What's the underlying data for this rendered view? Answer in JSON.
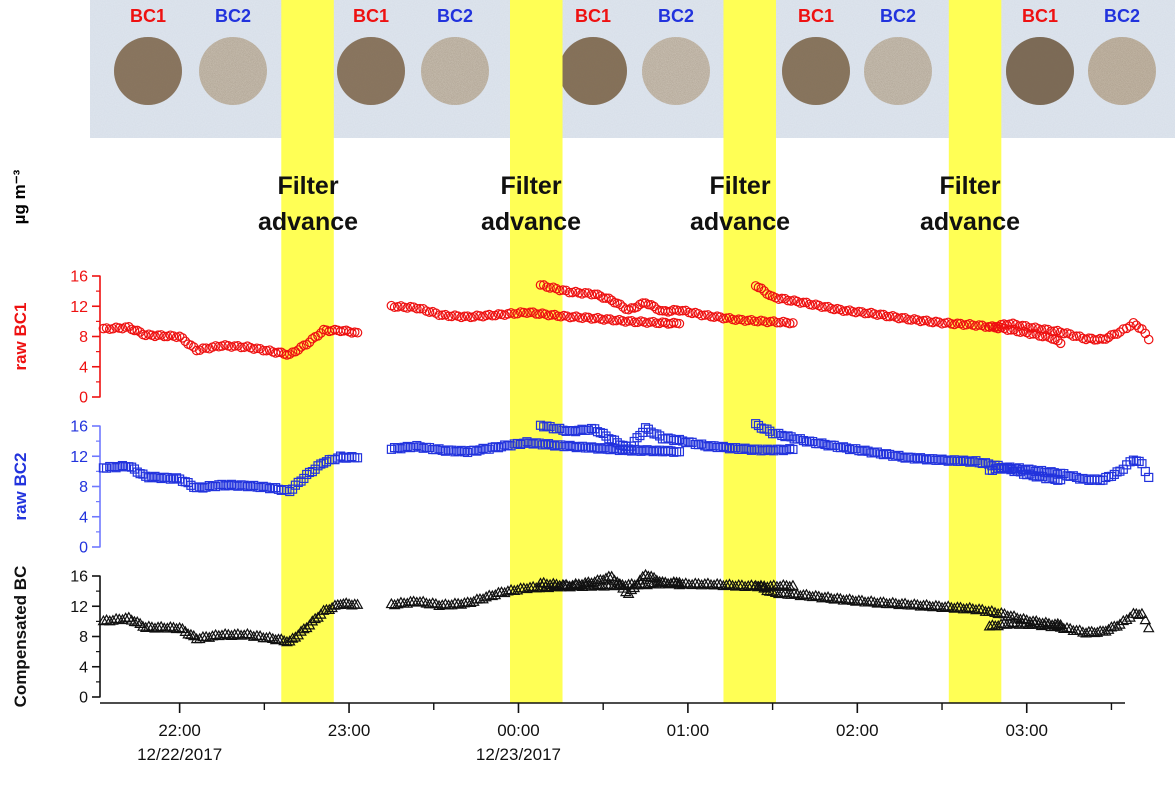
{
  "colors": {
    "bc1": "#ee1111",
    "bc2": "#2233dd",
    "bc2_axis": "#6f78ff",
    "compensated": "#111111",
    "band": "#ffff55",
    "filter_tape": "#dfe6ef"
  },
  "unit_label": "µg m⁻³",
  "filter_spots": [
    {
      "label": "BC1",
      "color": "#ee1111",
      "spot_shade": "#8c7760"
    },
    {
      "label": "BC2",
      "color": "#2233dd",
      "spot_shade": "#cfc6b8"
    },
    {
      "label": "BC1",
      "color": "#ee1111",
      "spot_shade": "#8c7760"
    },
    {
      "label": "BC2",
      "color": "#2233dd",
      "spot_shade": "#cfc6b8"
    },
    {
      "label": "BC1",
      "color": "#ee1111",
      "spot_shade": "#877259"
    },
    {
      "label": "BC2",
      "color": "#2233dd",
      "spot_shade": "#d2c9bc"
    },
    {
      "label": "BC1",
      "color": "#ee1111",
      "spot_shade": "#8a765e"
    },
    {
      "label": "BC2",
      "color": "#2233dd",
      "spot_shade": "#d0c8bb"
    },
    {
      "label": "BC1",
      "color": "#ee1111",
      "spot_shade": "#7c6a55"
    },
    {
      "label": "BC2",
      "color": "#2233dd",
      "spot_shade": "#cbbfae"
    }
  ],
  "chart_data": {
    "type": "scatter",
    "x_axis": {
      "unit": "hours after 00:00 12/23/2017",
      "range": [
        -2.47,
        3.58
      ],
      "major_ticks": [
        -2,
        -1,
        0,
        1,
        2,
        3
      ],
      "minor_ticks": [
        -1.5,
        -0.5,
        0.5,
        1.5,
        2.5,
        3.5
      ],
      "tick_labels": [
        {
          "time": "22:00",
          "date": "12/22/2017"
        },
        {
          "time": "23:00",
          "date": ""
        },
        {
          "time": "00:00",
          "date": "12/23/2017"
        },
        {
          "time": "01:00",
          "date": ""
        },
        {
          "time": "02:00",
          "date": ""
        },
        {
          "time": "03:00",
          "date": ""
        }
      ]
    },
    "filter_advance_bands": [
      {
        "start": -1.4,
        "end": -1.09,
        "line1": "Filter",
        "line2": "advance"
      },
      {
        "start": -0.05,
        "end": 0.26,
        "line1": "Filter",
        "line2": "advance"
      },
      {
        "start": 1.21,
        "end": 1.52,
        "line1": "Filter",
        "line2": "advance"
      },
      {
        "start": 2.54,
        "end": 2.85,
        "line1": "Filter",
        "line2": "advance"
      }
    ],
    "panels": [
      {
        "name": "raw BC1",
        "label_prefix": "raw ",
        "label_main": "BC1",
        "marker": "circle",
        "ylim": [
          0,
          16
        ],
        "yticks": [
          "0",
          "4",
          "8",
          "12",
          "16"
        ],
        "segments": [
          [
            [
              -2.45,
              9.0
            ],
            [
              -2.3,
              9.2
            ],
            [
              -2.2,
              8.2
            ],
            [
              -2.0,
              8.0
            ],
            [
              -1.9,
              6.2
            ],
            [
              -1.75,
              6.8
            ],
            [
              -1.6,
              6.6
            ],
            [
              -1.45,
              6.0
            ],
            [
              -1.35,
              5.6
            ],
            [
              -1.25,
              7.0
            ],
            [
              -1.15,
              8.8
            ],
            [
              -1.05,
              8.8
            ],
            [
              -0.95,
              8.5
            ]
          ],
          [
            [
              -0.75,
              12.0
            ],
            [
              -0.6,
              11.8
            ],
            [
              -0.45,
              10.8
            ],
            [
              -0.3,
              10.6
            ],
            [
              -0.1,
              10.9
            ],
            [
              0.05,
              11.2
            ],
            [
              0.25,
              10.7
            ],
            [
              0.45,
              10.4
            ],
            [
              0.65,
              10.0
            ],
            [
              0.85,
              9.8
            ],
            [
              0.95,
              9.7
            ]
          ],
          [
            [
              0.13,
              14.8
            ],
            [
              0.3,
              13.9
            ],
            [
              0.45,
              13.6
            ],
            [
              0.55,
              12.8
            ],
            [
              0.65,
              11.5
            ],
            [
              0.75,
              12.5
            ],
            [
              0.85,
              11.3
            ],
            [
              0.95,
              11.5
            ],
            [
              1.1,
              10.8
            ],
            [
              1.3,
              10.2
            ],
            [
              1.45,
              10.0
            ],
            [
              1.62,
              9.8
            ]
          ],
          [
            [
              1.4,
              14.8
            ],
            [
              1.5,
              13.2
            ],
            [
              1.7,
              12.4
            ],
            [
              1.9,
              11.5
            ],
            [
              2.1,
              11.0
            ],
            [
              2.3,
              10.3
            ],
            [
              2.5,
              9.8
            ],
            [
              2.7,
              9.5
            ],
            [
              2.85,
              9.1
            ],
            [
              3.0,
              8.5
            ],
            [
              3.15,
              7.8
            ],
            [
              3.2,
              7.1
            ]
          ],
          [
            [
              2.78,
              9.2
            ],
            [
              2.9,
              9.7
            ],
            [
              3.05,
              9.1
            ],
            [
              3.2,
              8.6
            ],
            [
              3.35,
              7.7
            ],
            [
              3.45,
              7.6
            ],
            [
              3.55,
              8.6
            ],
            [
              3.63,
              9.7
            ],
            [
              3.68,
              9.0
            ],
            [
              3.72,
              7.6
            ]
          ]
        ]
      },
      {
        "name": "raw BC2",
        "label_prefix": "raw ",
        "label_main": "BC2",
        "marker": "square",
        "ylim": [
          0,
          16
        ],
        "yticks": [
          "0",
          "4",
          "8",
          "12",
          "16"
        ],
        "segments": [
          [
            [
              -2.45,
              10.5
            ],
            [
              -2.3,
              10.7
            ],
            [
              -2.2,
              9.3
            ],
            [
              -2.0,
              9.0
            ],
            [
              -1.9,
              7.8
            ],
            [
              -1.75,
              8.2
            ],
            [
              -1.6,
              8.1
            ],
            [
              -1.45,
              7.8
            ],
            [
              -1.35,
              7.4
            ],
            [
              -1.25,
              9.5
            ],
            [
              -1.15,
              11.2
            ],
            [
              -1.05,
              11.9
            ],
            [
              -0.95,
              11.8
            ]
          ],
          [
            [
              -0.75,
              13.0
            ],
            [
              -0.6,
              13.3
            ],
            [
              -0.45,
              12.8
            ],
            [
              -0.3,
              12.6
            ],
            [
              -0.1,
              13.3
            ],
            [
              0.05,
              13.8
            ],
            [
              0.25,
              13.4
            ],
            [
              0.45,
              13.1
            ],
            [
              0.65,
              12.8
            ],
            [
              0.85,
              12.7
            ],
            [
              0.95,
              12.6
            ]
          ],
          [
            [
              0.13,
              16.1
            ],
            [
              0.3,
              15.3
            ],
            [
              0.45,
              15.6
            ],
            [
              0.55,
              14.2
            ],
            [
              0.65,
              13.0
            ],
            [
              0.75,
              15.7
            ],
            [
              0.85,
              14.4
            ],
            [
              0.95,
              14.1
            ],
            [
              1.1,
              13.4
            ],
            [
              1.3,
              13.0
            ],
            [
              1.45,
              12.8
            ],
            [
              1.62,
              12.9
            ]
          ],
          [
            [
              1.4,
              16.2
            ],
            [
              1.5,
              15.1
            ],
            [
              1.7,
              14.0
            ],
            [
              1.9,
              13.2
            ],
            [
              2.1,
              12.5
            ],
            [
              2.3,
              11.8
            ],
            [
              2.5,
              11.5
            ],
            [
              2.7,
              11.3
            ],
            [
              2.85,
              10.6
            ],
            [
              3.0,
              9.6
            ],
            [
              3.15,
              9.0
            ],
            [
              3.2,
              8.9
            ]
          ],
          [
            [
              2.78,
              10.2
            ],
            [
              2.9,
              10.5
            ],
            [
              3.05,
              10.1
            ],
            [
              3.2,
              9.7
            ],
            [
              3.35,
              8.9
            ],
            [
              3.45,
              8.9
            ],
            [
              3.55,
              10.0
            ],
            [
              3.63,
              11.6
            ],
            [
              3.68,
              11.0
            ],
            [
              3.72,
              9.2
            ]
          ]
        ]
      },
      {
        "name": "Compensated BC",
        "label_prefix": "",
        "label_main": "Compensated BC",
        "marker": "triangle",
        "ylim": [
          0,
          16
        ],
        "yticks": [
          "0",
          "4",
          "8",
          "12",
          "16"
        ],
        "segments": [
          [
            [
              -2.45,
              10.0
            ],
            [
              -2.3,
              10.4
            ],
            [
              -2.2,
              9.2
            ],
            [
              -2.0,
              9.1
            ],
            [
              -1.9,
              7.7
            ],
            [
              -1.75,
              8.2
            ],
            [
              -1.6,
              8.2
            ],
            [
              -1.45,
              7.7
            ],
            [
              -1.35,
              7.3
            ],
            [
              -1.25,
              9.2
            ],
            [
              -1.15,
              11.3
            ],
            [
              -1.05,
              12.3
            ],
            [
              -0.95,
              12.2
            ]
          ],
          [
            [
              -0.75,
              12.2
            ],
            [
              -0.6,
              12.6
            ],
            [
              -0.45,
              12.1
            ],
            [
              -0.3,
              12.4
            ],
            [
              -0.1,
              13.8
            ],
            [
              0.05,
              14.4
            ],
            [
              0.25,
              14.6
            ],
            [
              0.45,
              14.7
            ],
            [
              0.65,
              14.8
            ],
            [
              0.85,
              15.0
            ],
            [
              0.95,
              15.1
            ]
          ],
          [
            [
              0.13,
              15.0
            ],
            [
              0.3,
              14.7
            ],
            [
              0.45,
              15.2
            ],
            [
              0.55,
              15.9
            ],
            [
              0.65,
              13.6
            ],
            [
              0.75,
              16.2
            ],
            [
              0.85,
              15.1
            ],
            [
              0.95,
              14.9
            ],
            [
              1.1,
              14.9
            ],
            [
              1.3,
              14.7
            ],
            [
              1.45,
              14.6
            ],
            [
              1.62,
              14.7
            ]
          ],
          [
            [
              1.4,
              14.8
            ],
            [
              1.5,
              13.8
            ],
            [
              1.7,
              13.4
            ],
            [
              1.9,
              12.9
            ],
            [
              2.1,
              12.5
            ],
            [
              2.3,
              12.2
            ],
            [
              2.5,
              11.9
            ],
            [
              2.7,
              11.6
            ],
            [
              2.85,
              11.0
            ],
            [
              3.0,
              10.1
            ],
            [
              3.15,
              9.6
            ],
            [
              3.2,
              9.5
            ]
          ],
          [
            [
              2.78,
              9.3
            ],
            [
              2.9,
              9.7
            ],
            [
              3.05,
              9.6
            ],
            [
              3.2,
              9.2
            ],
            [
              3.35,
              8.5
            ],
            [
              3.45,
              8.6
            ],
            [
              3.55,
              9.6
            ],
            [
              3.63,
              10.9
            ],
            [
              3.68,
              11.0
            ],
            [
              3.72,
              9.1
            ]
          ]
        ]
      }
    ]
  }
}
